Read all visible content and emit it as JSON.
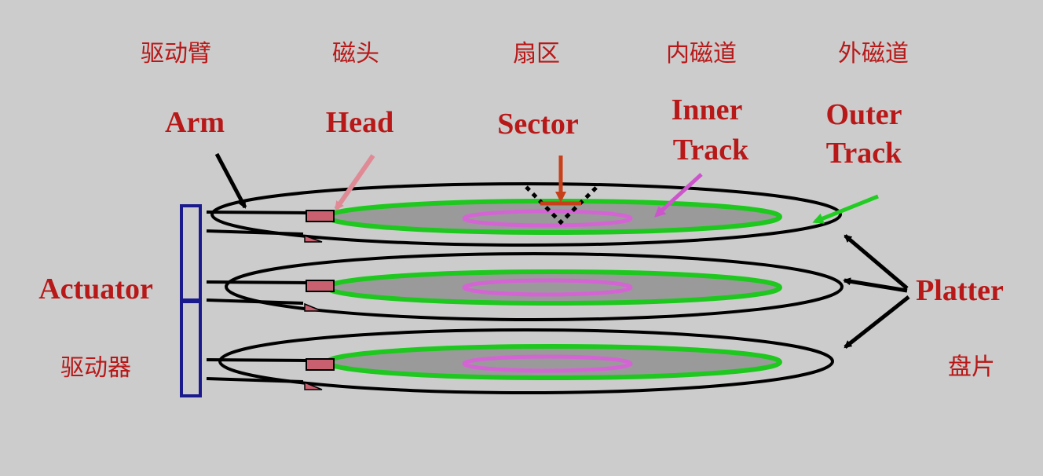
{
  "labels": {
    "arm_zh": "驱动臂",
    "head_zh": "磁头",
    "sector_zh": "扇区",
    "inner_track_zh": "内磁道",
    "outer_track_zh": "外磁道",
    "arm_en": "Arm",
    "head_en": "Head",
    "sector_en": "Sector",
    "inner_track_en_line1": "Inner",
    "inner_track_en_line2": "Track",
    "outer_track_en_line1": "Outer",
    "outer_track_en_line2": "Track",
    "actuator_en": "Actuator",
    "actuator_zh": "驱动器",
    "platter_en": "Platter",
    "platter_zh": "盘片"
  },
  "colors": {
    "background": "#cccccc",
    "label_text": "#b81818",
    "platter_outline": "#000000",
    "platter_surface": "#9a9a9a",
    "outer_track": "#1ec81e",
    "inner_track": "#d464d4",
    "actuator": "#1a1a8c",
    "head": "#c86070",
    "head_arrow": "#e08a96",
    "sector_arrow": "#c8401a",
    "inner_track_arrow": "#cc55cc",
    "outer_track_arrow": "#22cc22",
    "arrow_black": "#000000"
  },
  "platter_count": 3
}
